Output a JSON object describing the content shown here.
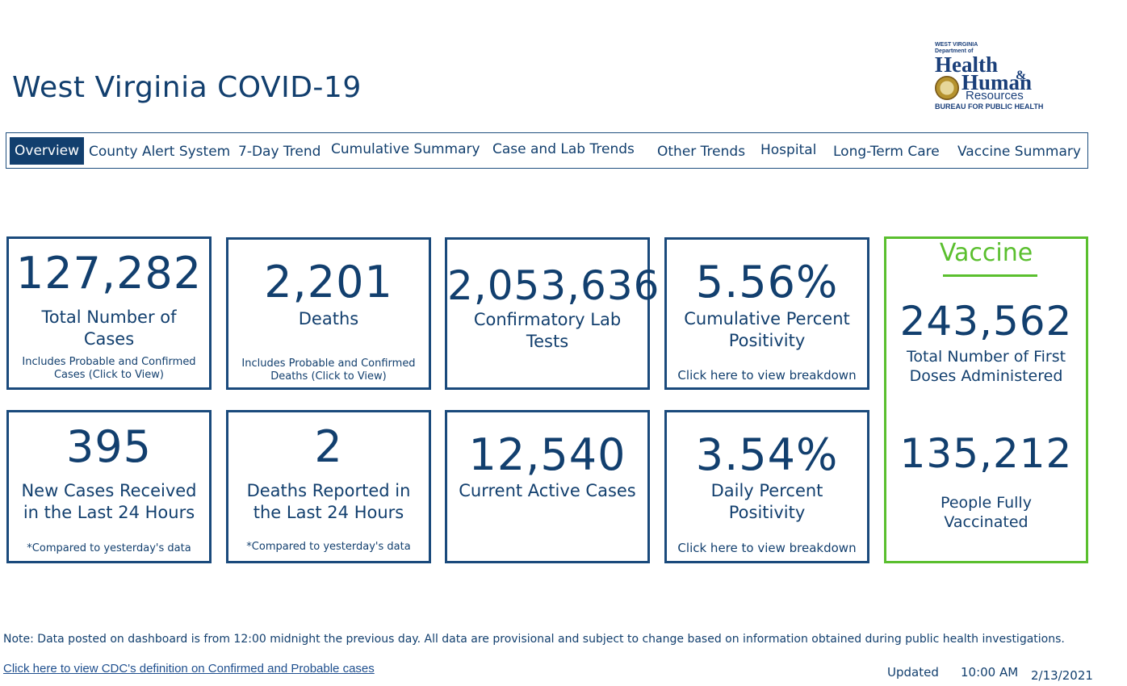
{
  "header": {
    "title": "West Virginia COVID-19"
  },
  "logo": {
    "line1": "WEST VIRGINIA",
    "line2": "Department of",
    "word1": "Health",
    "amp": "&",
    "word2": "Human",
    "word3": "Resources",
    "bureau": "BUREAU FOR PUBLIC HEALTH"
  },
  "nav": {
    "tabs": [
      {
        "label": "Overview",
        "active": true
      },
      {
        "label": "County Alert System"
      },
      {
        "label": "7-Day Trend"
      },
      {
        "label": "Cumulative Summary"
      },
      {
        "label": "Case and Lab Trends"
      },
      {
        "label": "Other Trends"
      },
      {
        "label": "Hospital"
      },
      {
        "label": "Long-Term Care"
      },
      {
        "label": "Vaccine Summary"
      }
    ]
  },
  "cards": {
    "total_cases": {
      "value": "127,282",
      "label": "Total Number of Cases",
      "note": "Includes Probable and Confirmed Cases (Click to View)"
    },
    "deaths": {
      "value": "2,201",
      "label": "Deaths",
      "note": "Includes Probable and Confirmed Deaths (Click to View)"
    },
    "lab_tests": {
      "value": "2,053,636",
      "label": "Confirmatory Lab Tests"
    },
    "cum_positivity": {
      "value": "5.56%",
      "label": "Cumulative Percent Positivity",
      "link": "Click here to view breakdown"
    },
    "new_cases": {
      "value": "395",
      "label": "New Cases Received in the Last 24 Hours",
      "note": "*Compared to yesterday's data"
    },
    "new_deaths": {
      "value": "2",
      "label": "Deaths Reported in the Last 24 Hours",
      "note": "*Compared to yesterday's data"
    },
    "active_cases": {
      "value": "12,540",
      "label": "Current Active Cases"
    },
    "daily_positivity": {
      "value": "3.54%",
      "label": "Daily Percent Positivity",
      "link": "Click here to view breakdown"
    }
  },
  "vaccine": {
    "heading": "Vaccine",
    "first_doses": {
      "value": "243,562",
      "label": "Total Number of First Doses Administered"
    },
    "fully_vaccinated": {
      "value": "135,212",
      "label": "People Fully Vaccinated"
    }
  },
  "footer": {
    "note": "Note: Data posted on dashboard is from 12:00 midnight the previous day. All data are provisional and subject to change based on information obtained during public health investigations.",
    "cdc_link": "Click here to view CDC's definition on Confirmed and Probable cases",
    "updated_label": "Updated",
    "updated_time": "10:00 AM",
    "updated_date": "2/13/2021"
  },
  "colors": {
    "primary": "#123f6e",
    "vaccine_green": "#5abf2e",
    "border": "#1a4a7c"
  }
}
